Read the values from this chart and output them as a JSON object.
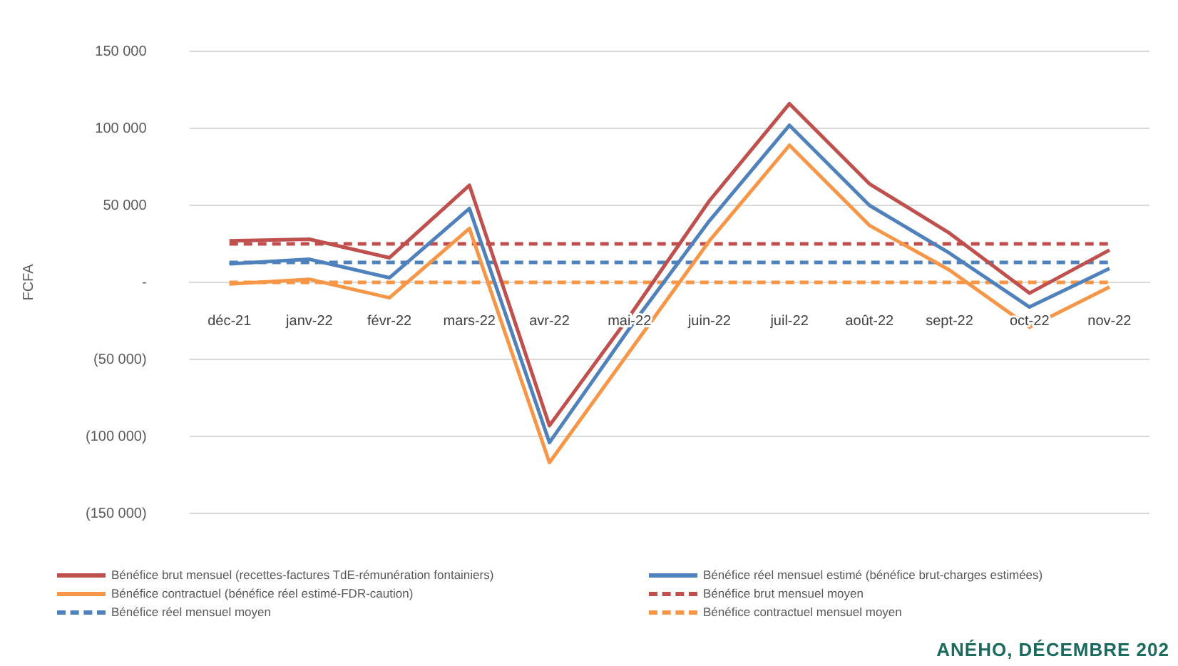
{
  "chart_data": {
    "type": "line",
    "ylabel": "FCFA",
    "categories": [
      "déc-21",
      "janv-22",
      "févr-22",
      "mars-22",
      "avr-22",
      "mai-22",
      "juin-22",
      "juil-22",
      "août-22",
      "sept-22",
      "oct-22",
      "nov-22"
    ],
    "series": [
      {
        "name": "Bénéfice brut mensuel (recettes-factures TdE-rémunération fontainiers)",
        "color": "#c0504d",
        "values": [
          27000,
          28000,
          16000,
          63000,
          -93000,
          -22000,
          53000,
          116000,
          64000,
          32000,
          -7000,
          21000
        ]
      },
      {
        "name": "Bénéfice réel mensuel estimé (bénéfice brut-charges estimées)",
        "color": "#4f81bd",
        "values": [
          12000,
          15000,
          3000,
          48000,
          -104000,
          -30000,
          40000,
          102000,
          50000,
          19000,
          -16000,
          9000
        ]
      },
      {
        "name": "Bénéfice contractuel (bénéfice réel estimé-FDR-caution)",
        "color": "#f79646",
        "values": [
          -1000,
          2000,
          -10000,
          35000,
          -117000,
          -45000,
          27000,
          89000,
          37000,
          8000,
          -29000,
          -3000
        ]
      },
      {
        "name": "Bénéfice brut mensuel moyen",
        "color": "#c0504d",
        "line_style": "dashed",
        "values": [
          25000,
          25000,
          25000,
          25000,
          25000,
          25000,
          25000,
          25000,
          25000,
          25000,
          25000,
          25000
        ]
      },
      {
        "name": "Bénéfice réel mensuel moyen",
        "color": "#4f81bd",
        "line_style": "dashed",
        "values": [
          13000,
          13000,
          13000,
          13000,
          13000,
          13000,
          13000,
          13000,
          13000,
          13000,
          13000,
          13000
        ]
      },
      {
        "name": "Bénéfice contractuel mensuel moyen",
        "color": "#f79646",
        "line_style": "dashed",
        "values": [
          0,
          0,
          0,
          0,
          0,
          0,
          0,
          0,
          0,
          0,
          0,
          0
        ]
      }
    ],
    "ylim": [
      -150000,
      150000
    ],
    "yticks": [
      {
        "value": -150000,
        "label": "(150 000)"
      },
      {
        "value": -100000,
        "label": "(100 000)"
      },
      {
        "value": -50000,
        "label": "(50 000)"
      },
      {
        "value": 0,
        "label": "-"
      },
      {
        "value": 50000,
        "label": "50 000"
      },
      {
        "value": 100000,
        "label": "100 000"
      },
      {
        "value": 150000,
        "label": "150 000"
      }
    ],
    "grid": "y",
    "legend": "bottom",
    "marker": "none",
    "line_style": "solid",
    "annotations": [
      "ANÉHO, DÉCEMBRE 202"
    ]
  }
}
